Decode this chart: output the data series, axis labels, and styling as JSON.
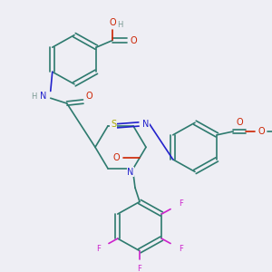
{
  "bg_color": "#eeeef4",
  "C": "#2d7a6e",
  "H": "#7a9a92",
  "O": "#cc2200",
  "N": "#2222cc",
  "S": "#aaaa00",
  "F": "#cc22cc",
  "lw": 1.2,
  "fs": 7.0,
  "fs_sm": 6.0
}
